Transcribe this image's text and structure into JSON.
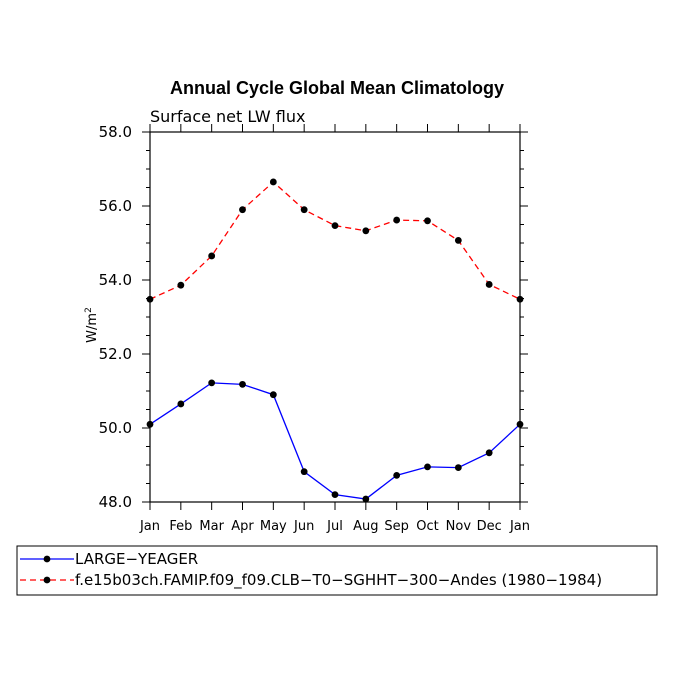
{
  "chart_data": {
    "type": "line",
    "title": "Annual Cycle Global Mean Climatology",
    "subtitle": "Surface net LW flux",
    "ylabel": "W/m",
    "ylabel_sup": "2",
    "xlabel": "",
    "ylim": [
      48.0,
      58.0
    ],
    "yticks": [
      "48.0",
      "50.0",
      "52.0",
      "54.0",
      "56.0",
      "58.0"
    ],
    "categories": [
      "Jan",
      "Feb",
      "Mar",
      "Apr",
      "May",
      "Jun",
      "Jul",
      "Aug",
      "Sep",
      "Oct",
      "Nov",
      "Dec",
      "Jan"
    ],
    "series": [
      {
        "name": "LARGE−YEAGER",
        "color": "#0000ff",
        "dash": "solid",
        "values": [
          50.1,
          50.65,
          51.22,
          51.18,
          50.9,
          48.82,
          48.2,
          48.08,
          48.72,
          48.95,
          48.93,
          49.33,
          50.1
        ]
      },
      {
        "name": "f.e15b03ch.FAMIP.f09_f09.CLB−T0−SGHHT−300−Andes (1980−1984)",
        "color": "#ff0000",
        "dash": "dashed",
        "values": [
          53.48,
          53.86,
          54.65,
          55.9,
          56.65,
          55.9,
          55.47,
          55.33,
          55.62,
          55.6,
          55.07,
          53.88,
          53.48
        ]
      }
    ],
    "legend_position": "bottom"
  }
}
